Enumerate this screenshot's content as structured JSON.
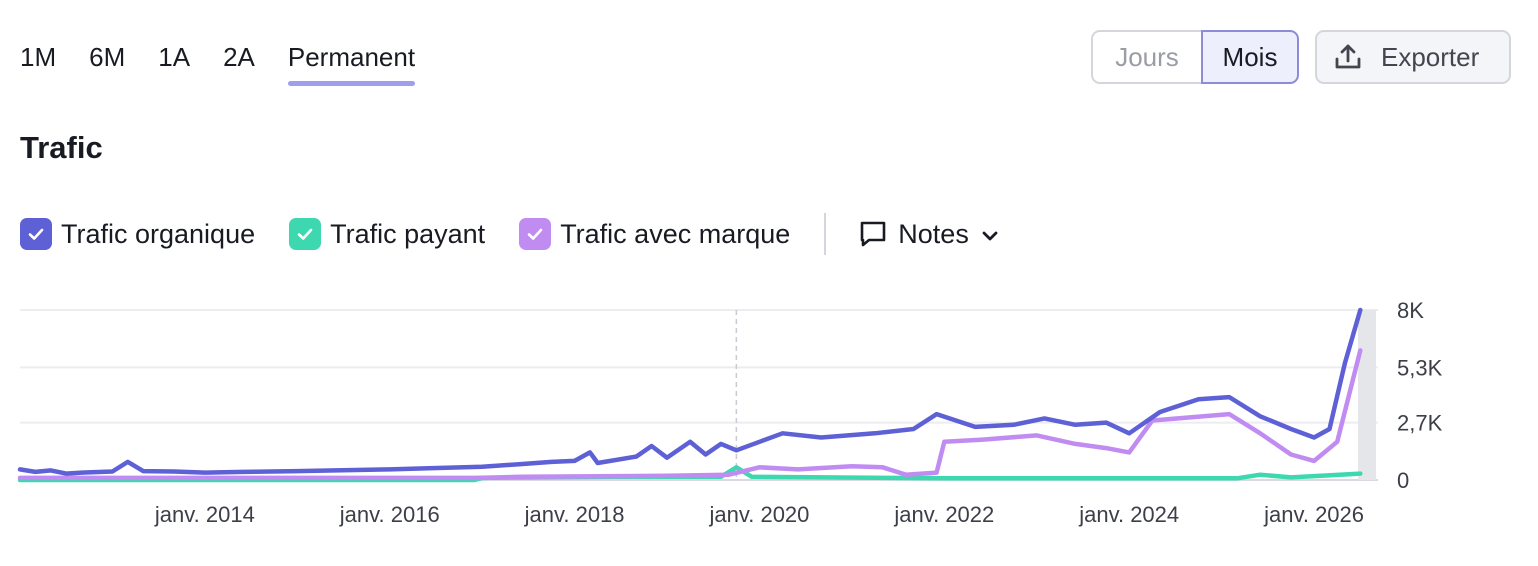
{
  "period_tabs": [
    {
      "label": "1M",
      "active": false
    },
    {
      "label": "6M",
      "active": false
    },
    {
      "label": "1A",
      "active": false
    },
    {
      "label": "2A",
      "active": false
    },
    {
      "label": "Permanent",
      "active": true
    }
  ],
  "granularity": {
    "jours_label": "Jours",
    "mois_label": "Mois",
    "selected": "Mois"
  },
  "export": {
    "label": "Exporter",
    "icon": "upload-icon"
  },
  "section_title": "Trafic",
  "legend": {
    "items": [
      {
        "label": "Trafic organique",
        "color": "#5e60d6",
        "checked": true
      },
      {
        "label": "Trafic payant",
        "color": "#3ed8b0",
        "checked": true
      },
      {
        "label": "Trafic avec marque",
        "color": "#c18cf2",
        "checked": true
      }
    ],
    "notes_label": "Notes"
  },
  "chart_data": {
    "type": "line",
    "title": "",
    "xlabel": "",
    "ylabel": "",
    "x_ticks": [
      "janv. 2014",
      "janv. 2016",
      "janv. 2018",
      "janv. 2020",
      "janv. 2022",
      "janv. 2024",
      "janv. 2026"
    ],
    "y_ticks": [
      "0",
      "2,7K",
      "5,3K",
      "8K"
    ],
    "ylim": [
      0,
      8000
    ],
    "xlim": [
      "2012-01",
      "2026-08"
    ],
    "highlight_date": "2019-10",
    "series": [
      {
        "name": "Trafic organique",
        "color": "#5e60d6",
        "points": [
          [
            "2012-01",
            500
          ],
          [
            "2012-03",
            380
          ],
          [
            "2012-05",
            450
          ],
          [
            "2012-07",
            300
          ],
          [
            "2012-09",
            350
          ],
          [
            "2013-01",
            400
          ],
          [
            "2013-03",
            850
          ],
          [
            "2013-05",
            420
          ],
          [
            "2013-09",
            400
          ],
          [
            "2014-01",
            350
          ],
          [
            "2014-06",
            380
          ],
          [
            "2015-01",
            420
          ],
          [
            "2015-06",
            450
          ],
          [
            "2016-01",
            500
          ],
          [
            "2016-06",
            550
          ],
          [
            "2017-01",
            620
          ],
          [
            "2017-06",
            750
          ],
          [
            "2017-10",
            850
          ],
          [
            "2018-01",
            900
          ],
          [
            "2018-03",
            1300
          ],
          [
            "2018-04",
            800
          ],
          [
            "2018-09",
            1100
          ],
          [
            "2018-11",
            1600
          ],
          [
            "2019-01",
            1050
          ],
          [
            "2019-04",
            1800
          ],
          [
            "2019-06",
            1200
          ],
          [
            "2019-08",
            1700
          ],
          [
            "2019-10",
            1400
          ],
          [
            "2020-01",
            1800
          ],
          [
            "2020-04",
            2200
          ],
          [
            "2020-09",
            2000
          ],
          [
            "2021-04",
            2200
          ],
          [
            "2021-09",
            2400
          ],
          [
            "2021-12",
            3100
          ],
          [
            "2022-05",
            2500
          ],
          [
            "2022-10",
            2600
          ],
          [
            "2023-02",
            2900
          ],
          [
            "2023-06",
            2600
          ],
          [
            "2023-10",
            2700
          ],
          [
            "2024-01",
            2200
          ],
          [
            "2024-05",
            3200
          ],
          [
            "2024-10",
            3800
          ],
          [
            "2025-02",
            3900
          ],
          [
            "2025-06",
            3000
          ],
          [
            "2025-10",
            2400
          ],
          [
            "2026-01",
            2000
          ],
          [
            "2026-03",
            2400
          ],
          [
            "2026-05",
            5500
          ],
          [
            "2026-07",
            8000
          ]
        ]
      },
      {
        "name": "Trafic payant",
        "color": "#3ed8b0",
        "points": [
          [
            "2012-01",
            0
          ],
          [
            "2016-12",
            0
          ],
          [
            "2017-01",
            100
          ],
          [
            "2018-06",
            150
          ],
          [
            "2019-08",
            150
          ],
          [
            "2019-10",
            600
          ],
          [
            "2019-12",
            150
          ],
          [
            "2022-01",
            80
          ],
          [
            "2025-03",
            80
          ],
          [
            "2025-06",
            250
          ],
          [
            "2025-10",
            120
          ],
          [
            "2026-07",
            300
          ]
        ]
      },
      {
        "name": "Trafic avec marque",
        "color": "#c18cf2",
        "points": [
          [
            "2012-01",
            100
          ],
          [
            "2016-12",
            100
          ],
          [
            "2017-06",
            150
          ],
          [
            "2019-01",
            200
          ],
          [
            "2019-09",
            250
          ],
          [
            "2020-01",
            600
          ],
          [
            "2020-06",
            500
          ],
          [
            "2021-01",
            650
          ],
          [
            "2021-05",
            600
          ],
          [
            "2021-08",
            250
          ],
          [
            "2021-12",
            350
          ],
          [
            "2022-01",
            1800
          ],
          [
            "2022-06",
            1900
          ],
          [
            "2023-01",
            2100
          ],
          [
            "2023-06",
            1700
          ],
          [
            "2023-10",
            1500
          ],
          [
            "2024-01",
            1300
          ],
          [
            "2024-04",
            2800
          ],
          [
            "2025-02",
            3100
          ],
          [
            "2025-06",
            2200
          ],
          [
            "2025-10",
            1200
          ],
          [
            "2026-01",
            900
          ],
          [
            "2026-04",
            1800
          ],
          [
            "2026-07",
            6100
          ]
        ]
      }
    ]
  }
}
